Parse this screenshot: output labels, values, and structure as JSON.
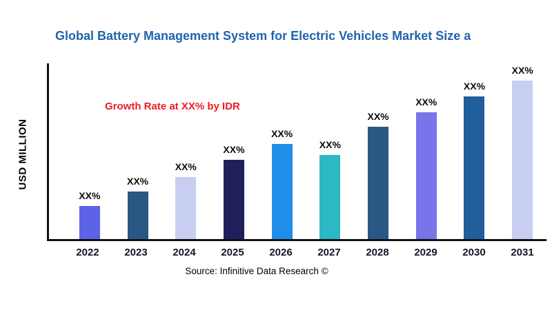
{
  "title": "Global Battery Management System for Electric Vehicles Market Size a",
  "y_axis_label": "USD MILLION",
  "annotation": "Growth Rate at XX% by IDR",
  "source": "Source: Infinitive Data Research ©",
  "colors": {
    "title": "#1f64ad",
    "annotation": "#ed1c24",
    "axis": "#111111"
  },
  "chart_data": {
    "type": "bar",
    "title": "Global Battery Management System for Electric Vehicles Market Size a",
    "xlabel": "",
    "ylabel": "USD MILLION",
    "categories": [
      "2022",
      "2023",
      "2024",
      "2025",
      "2026",
      "2027",
      "2028",
      "2029",
      "2030",
      "2031"
    ],
    "values": [
      21,
      30,
      39,
      50,
      60,
      53,
      71,
      80,
      90,
      100
    ],
    "bar_labels": [
      "XX%",
      "XX%",
      "XX%",
      "XX%",
      "XX%",
      "XX%",
      "XX%",
      "XX%",
      "XX%",
      "XX%"
    ],
    "bar_colors": [
      "#5c63e6",
      "#2a5784",
      "#c8cdf2",
      "#201f5b",
      "#1e8ee8",
      "#2cb8c4",
      "#2a5784",
      "#7a73ea",
      "#215e9c",
      "#c8cdf2"
    ],
    "ylim": [
      0,
      110
    ],
    "grid": false,
    "legend": "none",
    "note": "values are relative heights; y-axis has no numeric ticks, labels shown as XX%"
  }
}
